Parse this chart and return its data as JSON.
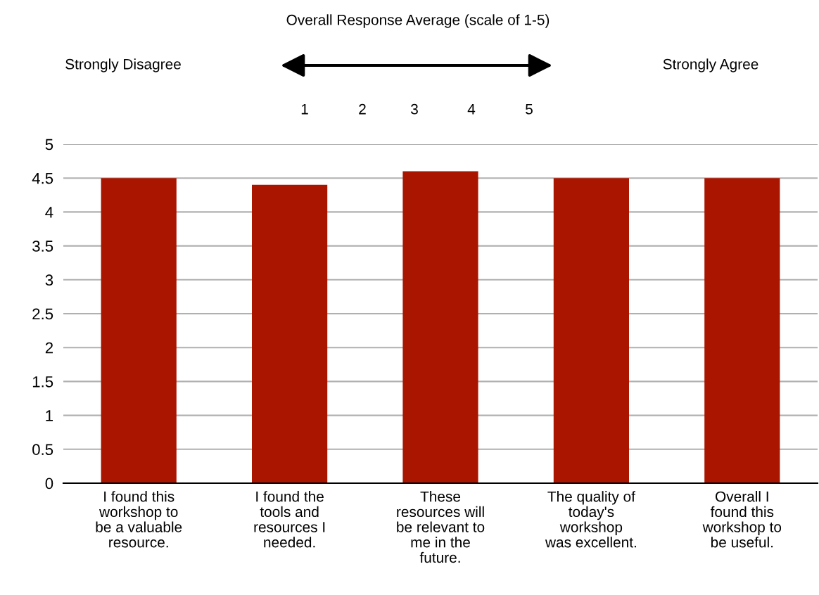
{
  "chart_data": {
    "type": "bar",
    "title": "Overall Response Average (scale of 1-5)",
    "categories": [
      "I found this\nworkshop to\nbe a valuable\nresource.",
      "I found the\ntools and\nresources I\nneeded.",
      "These\nresources will\nbe relevant to\nme in the\nfuture.",
      "The quality of\ntoday's\nworkshop\nwas excellent.",
      "Overall I\nfound this\nworkshop to\nbe useful."
    ],
    "values": [
      4.5,
      4.4,
      4.6,
      4.5,
      4.5
    ],
    "color": "#aa1500",
    "ylim": [
      0,
      5
    ],
    "yticks": [
      0,
      0.5,
      1,
      1.5,
      2,
      2.5,
      3,
      3.5,
      4,
      4.5,
      5
    ],
    "grid": "y",
    "annotations": [
      "Strongly Disagree",
      "Strongly Agree",
      "1",
      "2",
      "3",
      "4",
      "5"
    ]
  }
}
